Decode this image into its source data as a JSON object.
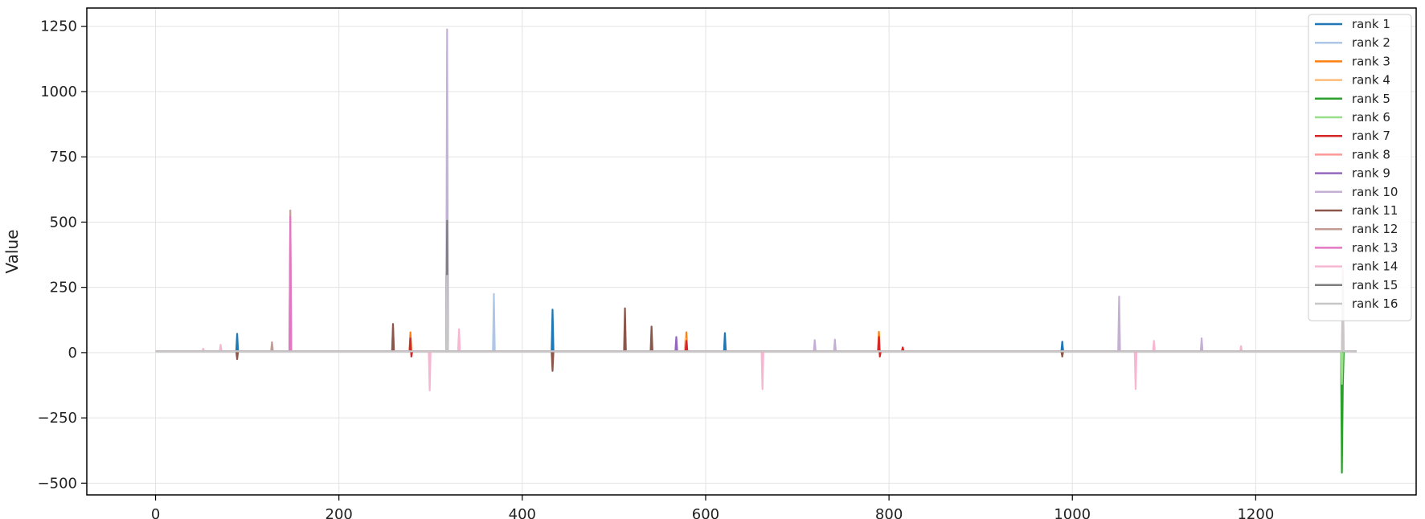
{
  "chart_data": {
    "type": "line",
    "title": "",
    "xlabel": "",
    "ylabel": "Value",
    "xlim": [
      -75,
      1375
    ],
    "ylim": [
      -545,
      1320
    ],
    "xticks": [
      0,
      200,
      400,
      600,
      800,
      1000,
      1200
    ],
    "yticks": [
      -500,
      -250,
      0,
      250,
      500,
      750,
      1000,
      1250
    ],
    "grid": true,
    "legend_position": "top-right",
    "series": [
      {
        "name": "rank 1",
        "color": "#1f77b4",
        "points": [
          [
            0,
            5
          ],
          [
            88,
            5
          ],
          [
            89,
            72
          ],
          [
            90,
            5
          ],
          [
            432,
            5
          ],
          [
            433,
            165
          ],
          [
            434,
            5
          ],
          [
            620,
            5
          ],
          [
            621,
            75
          ],
          [
            622,
            5
          ],
          [
            988,
            5
          ],
          [
            989,
            42
          ],
          [
            990,
            5
          ],
          [
            1310,
            5
          ]
        ]
      },
      {
        "name": "rank 2",
        "color": "#aec7e8",
        "points": [
          [
            0,
            5
          ],
          [
            368,
            5
          ],
          [
            369,
            225
          ],
          [
            370,
            5
          ],
          [
            1310,
            5
          ]
        ]
      },
      {
        "name": "rank 3",
        "color": "#ff7f0e",
        "points": [
          [
            0,
            5
          ],
          [
            277,
            5
          ],
          [
            278,
            78
          ],
          [
            279,
            5
          ],
          [
            578,
            5
          ],
          [
            579,
            78
          ],
          [
            580,
            5
          ],
          [
            788,
            5
          ],
          [
            789,
            80
          ],
          [
            790,
            5
          ],
          [
            1310,
            5
          ]
        ]
      },
      {
        "name": "rank 4",
        "color": "#ffbb78",
        "points": [
          [
            0,
            5
          ],
          [
            577,
            5
          ],
          [
            578,
            55
          ],
          [
            579,
            5
          ],
          [
            1310,
            5
          ]
        ]
      },
      {
        "name": "rank 5",
        "color": "#2ca02c",
        "points": [
          [
            0,
            5
          ],
          [
            1293,
            5
          ],
          [
            1294,
            -460
          ],
          [
            1295,
            -130
          ],
          [
            1296,
            5
          ],
          [
            1310,
            5
          ]
        ]
      },
      {
        "name": "rank 6",
        "color": "#98df8a",
        "points": [
          [
            0,
            5
          ],
          [
            1293,
            5
          ],
          [
            1294,
            -120
          ],
          [
            1295,
            5
          ],
          [
            1310,
            5
          ]
        ]
      },
      {
        "name": "rank 7",
        "color": "#d62728",
        "points": [
          [
            0,
            5
          ],
          [
            277,
            5
          ],
          [
            278,
            55
          ],
          [
            279,
            -15
          ],
          [
            280,
            5
          ],
          [
            578,
            5
          ],
          [
            579,
            45
          ],
          [
            580,
            5
          ],
          [
            788,
            5
          ],
          [
            789,
            60
          ],
          [
            790,
            -15
          ],
          [
            791,
            5
          ],
          [
            814,
            5
          ],
          [
            815,
            20
          ],
          [
            816,
            5
          ],
          [
            1310,
            5
          ]
        ]
      },
      {
        "name": "rank 8",
        "color": "#ff9896",
        "points": [
          [
            0,
            5
          ],
          [
            258,
            5
          ],
          [
            259,
            95
          ],
          [
            260,
            5
          ],
          [
            1310,
            5
          ]
        ]
      },
      {
        "name": "rank 9",
        "color": "#9467bd",
        "points": [
          [
            0,
            5
          ],
          [
            567,
            5
          ],
          [
            568,
            60
          ],
          [
            569,
            5
          ],
          [
            1310,
            5
          ]
        ]
      },
      {
        "name": "rank 10",
        "color": "#c5b0d5",
        "points": [
          [
            0,
            5
          ],
          [
            317,
            5
          ],
          [
            318,
            1238
          ],
          [
            319,
            5
          ],
          [
            718,
            5
          ],
          [
            719,
            48
          ],
          [
            720,
            5
          ],
          [
            740,
            5
          ],
          [
            741,
            50
          ],
          [
            742,
            5
          ],
          [
            1050,
            5
          ],
          [
            1051,
            215
          ],
          [
            1052,
            5
          ],
          [
            1140,
            5
          ],
          [
            1141,
            55
          ],
          [
            1142,
            5
          ],
          [
            1310,
            5
          ]
        ]
      },
      {
        "name": "rank 11",
        "color": "#8c564b",
        "points": [
          [
            0,
            5
          ],
          [
            88,
            5
          ],
          [
            89,
            -25
          ],
          [
            90,
            5
          ],
          [
            258,
            5
          ],
          [
            259,
            110
          ],
          [
            260,
            5
          ],
          [
            432,
            5
          ],
          [
            433,
            -70
          ],
          [
            434,
            5
          ],
          [
            511,
            5
          ],
          [
            512,
            170
          ],
          [
            513,
            5
          ],
          [
            540,
            5
          ],
          [
            541,
            100
          ],
          [
            542,
            5
          ],
          [
            988,
            5
          ],
          [
            989,
            -15
          ],
          [
            990,
            5
          ],
          [
            1310,
            5
          ]
        ]
      },
      {
        "name": "rank 12",
        "color": "#c49c94",
        "points": [
          [
            0,
            5
          ],
          [
            126,
            5
          ],
          [
            127,
            40
          ],
          [
            128,
            5
          ],
          [
            146,
            5
          ],
          [
            147,
            545
          ],
          [
            148,
            5
          ],
          [
            1310,
            5
          ]
        ]
      },
      {
        "name": "rank 13",
        "color": "#e377c2",
        "points": [
          [
            0,
            5
          ],
          [
            146,
            5
          ],
          [
            147,
            520
          ],
          [
            148,
            5
          ],
          [
            1310,
            5
          ]
        ]
      },
      {
        "name": "rank 14",
        "color": "#f7b6d2",
        "points": [
          [
            0,
            5
          ],
          [
            51,
            5
          ],
          [
            52,
            15
          ],
          [
            53,
            5
          ],
          [
            70,
            5
          ],
          [
            71,
            30
          ],
          [
            72,
            5
          ],
          [
            298,
            5
          ],
          [
            299,
            -145
          ],
          [
            300,
            5
          ],
          [
            330,
            5
          ],
          [
            331,
            90
          ],
          [
            332,
            5
          ],
          [
            661,
            5
          ],
          [
            662,
            -140
          ],
          [
            663,
            5
          ],
          [
            1068,
            5
          ],
          [
            1069,
            -140
          ],
          [
            1070,
            5
          ],
          [
            1088,
            5
          ],
          [
            1089,
            45
          ],
          [
            1090,
            5
          ],
          [
            1183,
            5
          ],
          [
            1184,
            25
          ],
          [
            1185,
            5
          ],
          [
            1294,
            5
          ],
          [
            1295,
            320
          ],
          [
            1296,
            5
          ],
          [
            1310,
            5
          ]
        ]
      },
      {
        "name": "rank 15",
        "color": "#7f7f7f",
        "points": [
          [
            0,
            5
          ],
          [
            317,
            5
          ],
          [
            318,
            505
          ],
          [
            319,
            5
          ],
          [
            1310,
            5
          ]
        ]
      },
      {
        "name": "rank 16",
        "color": "#c7c7c7",
        "points": [
          [
            0,
            5
          ],
          [
            317,
            5
          ],
          [
            318,
            295
          ],
          [
            319,
            5
          ],
          [
            1294,
            5
          ],
          [
            1295,
            280
          ],
          [
            1296,
            5
          ],
          [
            1310,
            5
          ]
        ]
      }
    ]
  }
}
